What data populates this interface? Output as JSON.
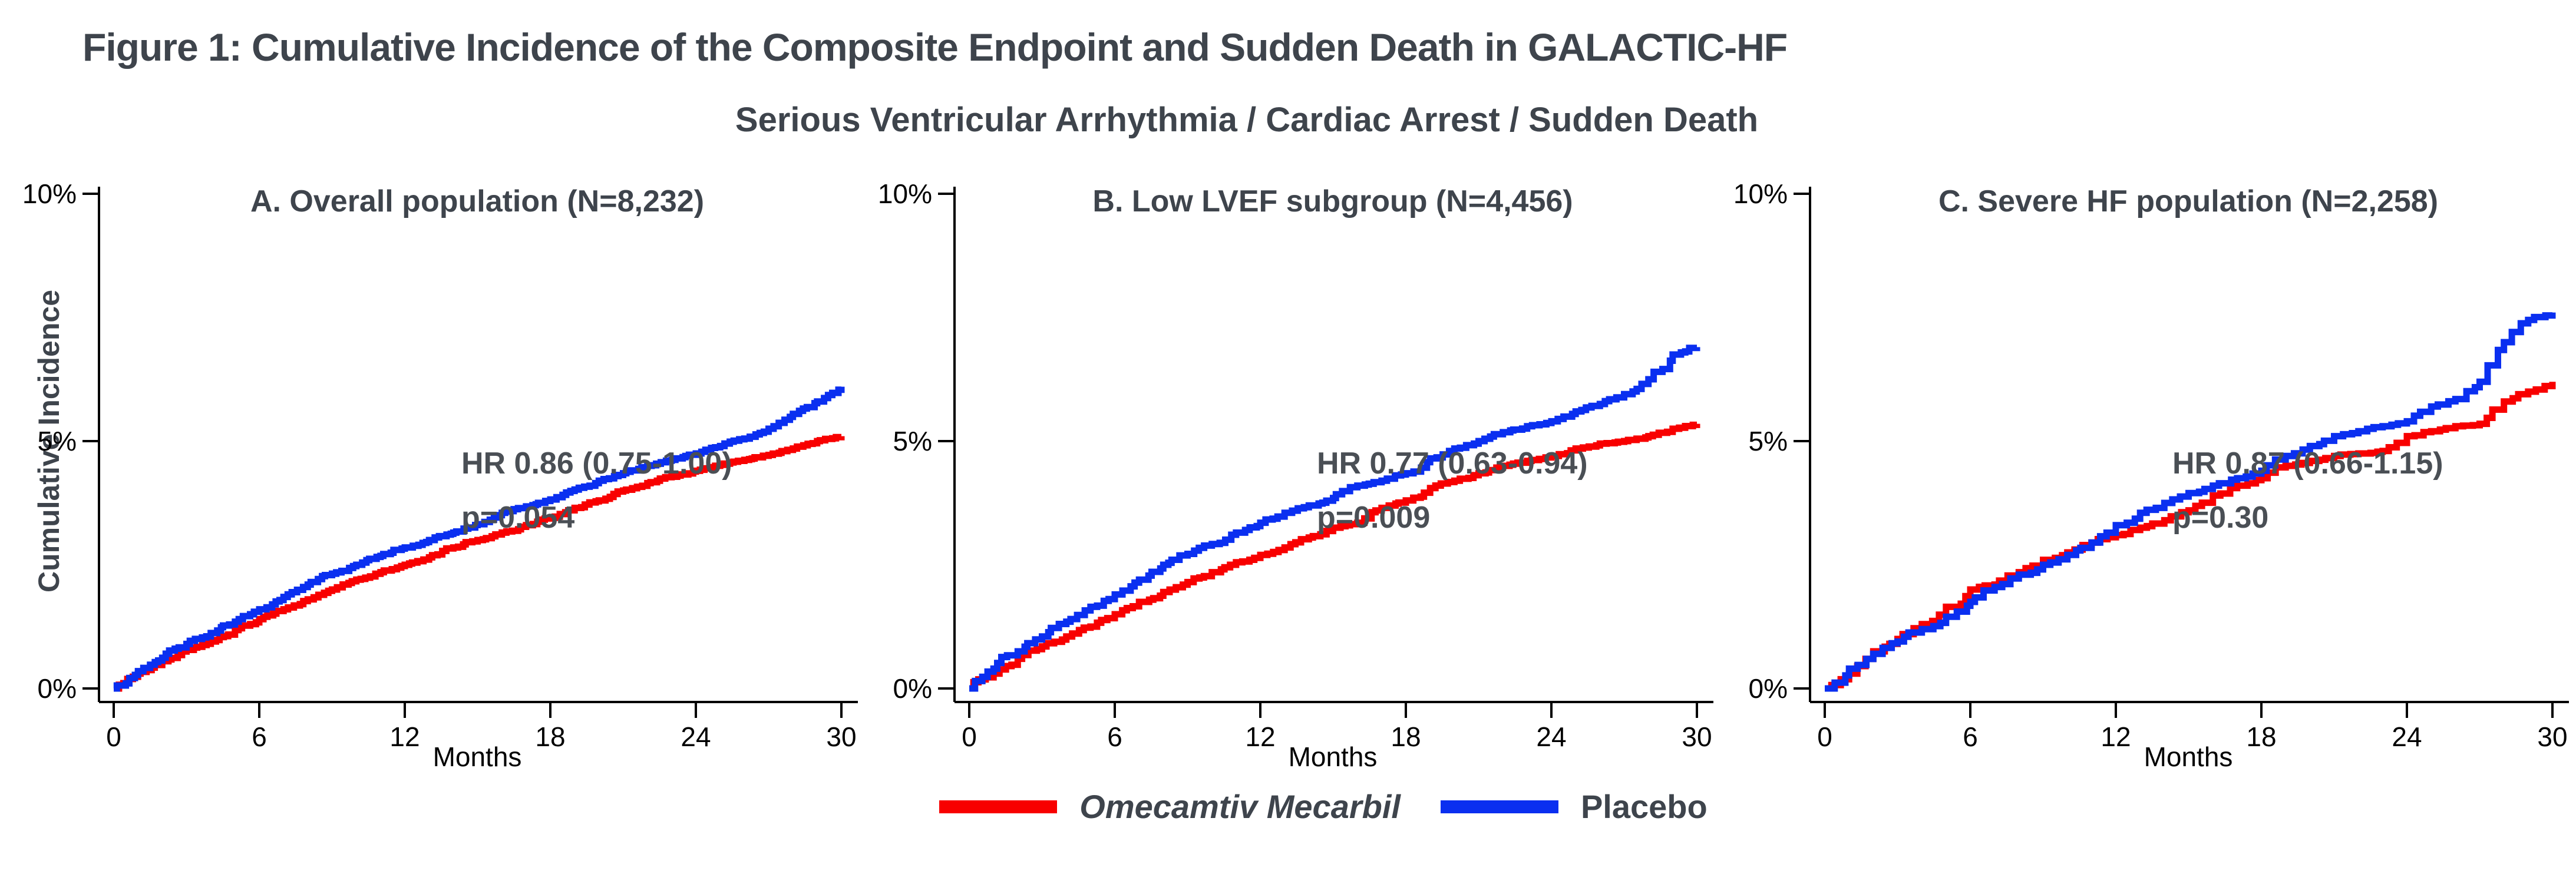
{
  "figure": {
    "title": "Figure 1: Cumulative Incidence of the Composite Endpoint and Sudden Death in GALACTIC-HF",
    "subtitle": "Serious Ventricular Arrhythmia / Cardiac Arrest / Sudden Death"
  },
  "colors": {
    "title_text": "#3e444c",
    "axis": "#000000",
    "omecamtiv_red": "#F80000",
    "placebo_blue": "#0A2FF0"
  },
  "y_axis": {
    "title": "Cumulative Incidence",
    "ticks": [
      "10%",
      "5%",
      "0%"
    ]
  },
  "x_axis": {
    "title": "Months",
    "ticks": [
      0,
      6,
      12,
      18,
      24,
      30
    ]
  },
  "legend": [
    {
      "label": "Omecamtiv Mecarbil",
      "color": "#F80000",
      "style": "italic"
    },
    {
      "label": "Placebo",
      "color": "#0A2FF0",
      "style": "normal"
    }
  ],
  "chart_data": [
    {
      "id": "A",
      "type": "line",
      "step": true,
      "step_detail": 5,
      "title": "A. Overall population (N=8,232)",
      "hr_text": "HR 0.86 (0.75-1.00)",
      "p_text": "p=0.054",
      "xlabel": "Months",
      "ylabel": "Cumulative Incidence",
      "xlim": [
        0,
        30
      ],
      "ylim": [
        0,
        10
      ],
      "x": [
        0,
        1,
        2,
        3,
        4,
        5,
        6,
        7,
        8,
        9,
        10,
        11,
        12,
        13,
        14,
        15,
        16,
        17,
        18,
        19,
        20,
        21,
        22,
        23,
        24,
        25,
        26,
        27,
        28,
        29,
        30
      ],
      "series": [
        {
          "name": "Omecamtiv Mecarbil",
          "color": "#F80000",
          "values": [
            0,
            0.3,
            0.55,
            0.78,
            0.95,
            1.18,
            1.4,
            1.6,
            1.8,
            2.0,
            2.2,
            2.35,
            2.5,
            2.65,
            2.85,
            3.0,
            3.15,
            3.3,
            3.45,
            3.65,
            3.8,
            4.0,
            4.15,
            4.28,
            4.4,
            4.52,
            4.62,
            4.72,
            4.85,
            5.0,
            5.1
          ]
        },
        {
          "name": "Placebo",
          "color": "#0A2FF0",
          "values": [
            0,
            0.35,
            0.62,
            0.9,
            1.12,
            1.35,
            1.6,
            1.85,
            2.1,
            2.32,
            2.5,
            2.68,
            2.85,
            3.0,
            3.15,
            3.32,
            3.55,
            3.68,
            3.82,
            4.02,
            4.2,
            4.35,
            4.5,
            4.62,
            4.75,
            4.9,
            5.05,
            5.25,
            5.55,
            5.8,
            6.1
          ]
        }
      ]
    },
    {
      "id": "B",
      "type": "line",
      "step": true,
      "step_detail": 4,
      "title": "B. Low LVEF subgroup (N=4,456)",
      "hr_text": "HR 0.77 (0.63-0.94)",
      "p_text": "p=0.009",
      "xlabel": "Months",
      "ylabel": "Cumulative Incidence",
      "xlim": [
        0,
        30
      ],
      "ylim": [
        0,
        10
      ],
      "x": [
        0,
        1,
        2,
        3,
        4,
        5,
        6,
        7,
        8,
        9,
        10,
        11,
        12,
        13,
        14,
        15,
        16,
        17,
        18,
        19,
        20,
        21,
        22,
        23,
        24,
        25,
        26,
        27,
        28,
        29,
        30
      ],
      "series": [
        {
          "name": "Omecamtiv Mecarbil",
          "color": "#F80000",
          "values": [
            0,
            0.3,
            0.6,
            0.85,
            1.05,
            1.25,
            1.5,
            1.75,
            1.95,
            2.15,
            2.35,
            2.55,
            2.7,
            2.85,
            3.05,
            3.25,
            3.35,
            3.65,
            3.8,
            4.05,
            4.2,
            4.35,
            4.5,
            4.6,
            4.7,
            4.85,
            4.95,
            5.0,
            5.1,
            5.25,
            5.35
          ]
        },
        {
          "name": "Placebo",
          "color": "#0A2FF0",
          "values": [
            0,
            0.4,
            0.75,
            1.05,
            1.35,
            1.65,
            1.9,
            2.2,
            2.5,
            2.72,
            2.92,
            3.15,
            3.35,
            3.55,
            3.7,
            3.85,
            4.1,
            4.2,
            4.35,
            4.65,
            4.85,
            5.0,
            5.18,
            5.3,
            5.4,
            5.6,
            5.75,
            5.95,
            6.25,
            6.75,
            6.9
          ]
        }
      ]
    },
    {
      "id": "C",
      "type": "line",
      "step": true,
      "step_detail": 3,
      "title": "C. Severe HF population (N=2,258)",
      "hr_text": "HR 0.87 (0.66-1.15)",
      "p_text": "p=0.30",
      "xlabel": "Months",
      "ylabel": "Cumulative Incidence",
      "xlim": [
        0,
        30
      ],
      "ylim": [
        0,
        10
      ],
      "x": [
        0,
        1,
        2,
        3,
        4,
        5,
        6,
        7,
        8,
        9,
        10,
        11,
        12,
        13,
        14,
        15,
        16,
        17,
        18,
        19,
        20,
        21,
        22,
        23,
        24,
        25,
        26,
        27,
        28,
        29,
        30
      ],
      "series": [
        {
          "name": "Omecamtiv Mecarbil",
          "color": "#F80000",
          "values": [
            0,
            0.3,
            0.75,
            1.0,
            1.3,
            1.65,
            2.0,
            2.1,
            2.35,
            2.6,
            2.75,
            2.95,
            3.1,
            3.25,
            3.4,
            3.6,
            3.9,
            4.1,
            4.25,
            4.5,
            4.6,
            4.7,
            4.75,
            4.8,
            5.1,
            5.2,
            5.3,
            5.35,
            5.8,
            6.0,
            6.2
          ]
        },
        {
          "name": "Placebo",
          "color": "#0A2FF0",
          "values": [
            0,
            0.4,
            0.7,
            0.95,
            1.2,
            1.45,
            1.75,
            2.05,
            2.3,
            2.5,
            2.7,
            2.95,
            3.3,
            3.55,
            3.75,
            3.95,
            4.1,
            4.25,
            4.4,
            4.7,
            4.9,
            5.1,
            5.2,
            5.3,
            5.4,
            5.7,
            5.85,
            6.2,
            7.0,
            7.45,
            7.6
          ]
        }
      ]
    }
  ]
}
